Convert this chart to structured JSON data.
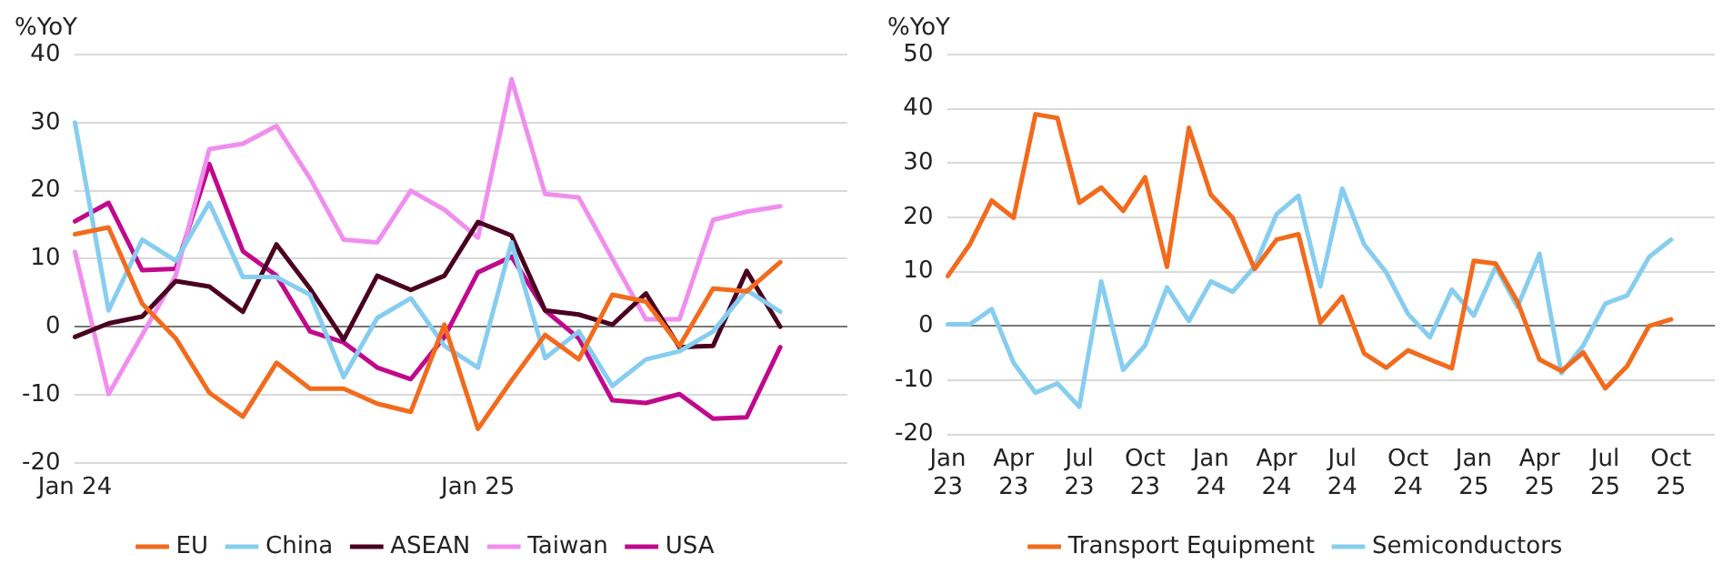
{
  "chart_data": [
    {
      "type": "line",
      "ylabel": "%YoY",
      "categories": [
        "Jan 24",
        null,
        null,
        null,
        null,
        null,
        null,
        null,
        null,
        null,
        null,
        null,
        "Jan 25",
        null,
        null,
        null,
        null,
        null,
        null,
        null,
        null,
        null,
        null,
        null
      ],
      "ylim": [
        -20,
        40
      ],
      "yticks": [
        -20,
        -10,
        0,
        10,
        20,
        30,
        40
      ],
      "grid": "y",
      "legend": "bottom",
      "marker": "none",
      "series": [
        {
          "name": "EU",
          "color": "#f26b1d",
          "values": [
            13.6,
            14.6,
            3.4,
            -1.7,
            -9.7,
            -13.2,
            -5.3,
            -9.1,
            -9.1,
            -11.3,
            -12.5,
            0.3,
            -15,
            -7.9,
            -1.2,
            -4.8,
            4.7,
            3.7,
            -2.8,
            5.6,
            5.2,
            9.5,
            null,
            null
          ]
        },
        {
          "name": "China",
          "color": "#86cdf0",
          "values": [
            30,
            2.4,
            12.8,
            9.7,
            18.2,
            7.3,
            7.3,
            4.7,
            -7.4,
            1.3,
            4.2,
            -2.8,
            -6,
            12.4,
            -4.6,
            -0.7,
            -8.7,
            -4.8,
            -3.6,
            -0.7,
            5.4,
            2.2,
            null,
            null
          ]
        },
        {
          "name": "ASEAN",
          "color": "#4a0020",
          "values": [
            -1.5,
            0.5,
            1.5,
            6.7,
            5.9,
            2.2,
            12.1,
            5.6,
            -1.9,
            7.5,
            5.4,
            7.5,
            15.4,
            13.4,
            2.4,
            1.8,
            0.3,
            4.9,
            -3,
            -2.8,
            8.2,
            0,
            null,
            null
          ]
        },
        {
          "name": "Taiwan",
          "color": "#f08ef0",
          "values": [
            11,
            -9.9,
            -1.2,
            7.5,
            26.1,
            26.9,
            29.5,
            21.8,
            12.8,
            12.4,
            20,
            17.2,
            13.1,
            36.4,
            19.5,
            19,
            10,
            1.1,
            1.1,
            15.7,
            16.9,
            17.7,
            null,
            null
          ]
        },
        {
          "name": "USA",
          "color": "#c0098c",
          "values": [
            15.5,
            18.2,
            8.3,
            8.5,
            23.9,
            11.1,
            7.5,
            -0.7,
            -2.3,
            -6,
            -7.7,
            -1.5,
            8,
            10.3,
            2.4,
            -1.7,
            -10.8,
            -11.2,
            -9.9,
            -13.5,
            -13.3,
            -3,
            null,
            null
          ]
        }
      ]
    },
    {
      "type": "line",
      "ylabel": "%YoY",
      "categories": [
        "Jan\n23",
        null,
        null,
        "Apr\n23",
        null,
        null,
        "Jul\n23",
        null,
        null,
        "Oct\n23",
        null,
        null,
        "Jan\n24",
        null,
        null,
        "Apr\n24",
        null,
        null,
        "Jul\n24",
        null,
        null,
        "Oct\n24",
        null,
        null,
        "Jan\n25",
        null,
        null,
        "Apr\n25",
        null,
        null,
        "Jul\n25",
        null,
        null,
        "Oct\n25",
        null,
        null
      ],
      "ylim": [
        -20,
        50
      ],
      "yticks": [
        -20,
        -10,
        0,
        10,
        20,
        30,
        40,
        50
      ],
      "grid": "y",
      "legend": "bottom",
      "marker": "none",
      "series": [
        {
          "name": "Transport Equipment",
          "color": "#f26b1d",
          "values": [
            9.2,
            15,
            23.1,
            19.9,
            39,
            38.3,
            22.7,
            25.5,
            21.2,
            27.4,
            10.9,
            36.5,
            24.2,
            19.9,
            10.5,
            15.9,
            16.9,
            0.6,
            5.4,
            -5.1,
            -7.7,
            -4.5,
            -6.2,
            -7.8,
            12,
            11.5,
            4.4,
            -6.2,
            -8.3,
            -4.9,
            -11.5,
            -7.4,
            0,
            1.2,
            null,
            null
          ]
        },
        {
          "name": "Semiconductors",
          "color": "#86cdf0",
          "values": [
            0.3,
            0.3,
            3.1,
            -6.8,
            -12.3,
            -10.6,
            -14.9,
            8.2,
            -8.1,
            -3.6,
            7.1,
            0.9,
            8.2,
            6.3,
            10.9,
            20.6,
            24,
            7.3,
            25.3,
            15,
            9.9,
            2.2,
            -2.1,
            6.7,
            1.9,
            10.9,
            3.5,
            13.3,
            -8.7,
            -3.6,
            4.1,
            5.6,
            12.7,
            15.9,
            null,
            null
          ]
        }
      ]
    }
  ]
}
